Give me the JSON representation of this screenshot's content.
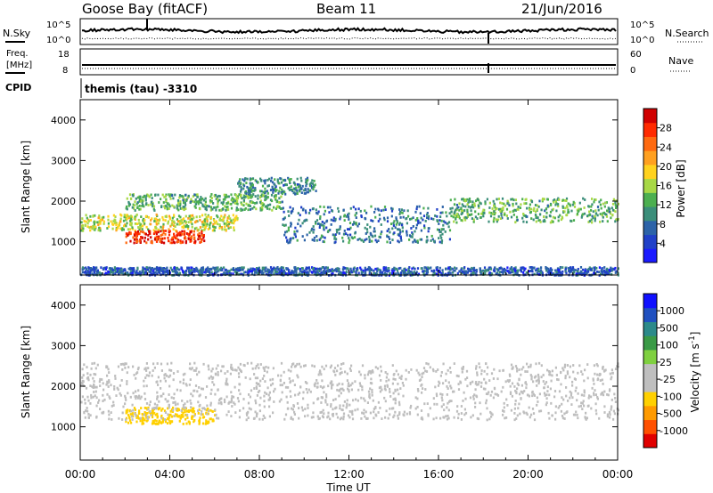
{
  "header": {
    "station": "Goose Bay (fitACF)",
    "beam": "Beam 11",
    "date": "21/Jun/2016",
    "program": "themis (tau)  -3310"
  },
  "noise_panel": {
    "left_label": "N.Sky",
    "right_label": "N.Search",
    "left_ticks": [
      "10^5",
      "10^0"
    ],
    "right_ticks": [
      "10^5",
      "10^0"
    ]
  },
  "freq_panel": {
    "left_label_1": "Freq.",
    "left_label_2": "[MHz]",
    "left_ticks": [
      "18",
      "8"
    ],
    "right_label": "Nave",
    "right_ticks": [
      "60",
      "0"
    ],
    "cpid_label": "CPID"
  },
  "time_axis": {
    "label": "Time UT",
    "ticks": [
      "00:00",
      "04:00",
      "08:00",
      "12:00",
      "16:00",
      "20:00",
      "00:00"
    ]
  },
  "range_axis": {
    "label": "Slant Range [km]",
    "ticks": [
      "1000",
      "2000",
      "3000",
      "4000"
    ]
  },
  "colors": {
    "power_scale": [
      "#1a1aff",
      "#2040c8",
      "#2c63a8",
      "#3b8e7a",
      "#4caf50",
      "#a8d846",
      "#ffd21e",
      "#ffa020",
      "#ff6a10",
      "#ff2a00",
      "#d00000"
    ],
    "velocity_scale": [
      "#e00000",
      "#ff5000",
      "#ff9a00",
      "#ffd000",
      "#bfbfbf",
      "#bfbfbf",
      "#7fd040",
      "#3a9a46",
      "#2c8a8a",
      "#2050c0",
      "#1010ff"
    ],
    "ground_scatter": "#bebebe"
  },
  "chart_data": [
    {
      "type": "heatmap",
      "name": "power",
      "x_range": [
        "00:00",
        "24:00"
      ],
      "y_range": [
        180,
        4500
      ],
      "colorbar": {
        "label": "Power [dB]",
        "ticks": [
          "4",
          "8",
          "12",
          "16",
          "20",
          "24",
          "28"
        ],
        "range": [
          0,
          30
        ]
      },
      "scatter_bands": [
        {
          "t0": 0.0,
          "t1": 7.0,
          "r0": 1300,
          "r1": 1700,
          "value": 16
        },
        {
          "t0": 2.0,
          "t1": 5.5,
          "r0": 1000,
          "r1": 1300,
          "value": 26
        },
        {
          "t0": 2.0,
          "t1": 9.0,
          "r0": 1800,
          "r1": 2200,
          "value": 12
        },
        {
          "t0": 7.0,
          "t1": 10.5,
          "r0": 2200,
          "r1": 2600,
          "value": 9
        },
        {
          "t0": 9.0,
          "t1": 16.5,
          "r0": 1000,
          "r1": 1900,
          "value": 8
        },
        {
          "t0": 16.5,
          "t1": 24.0,
          "r0": 1500,
          "r1": 2100,
          "value": 12
        },
        {
          "t0": 0.0,
          "t1": 24.0,
          "r0": 200,
          "r1": 400,
          "value": 6
        }
      ]
    },
    {
      "type": "heatmap",
      "name": "velocity",
      "x_range": [
        "00:00",
        "24:00"
      ],
      "y_range": [
        180,
        4500
      ],
      "colorbar": {
        "label": "Velocity [m s^-1]",
        "ticks": [
          "-1000",
          "-500",
          "-100",
          "-25",
          "25",
          "100",
          "500",
          "1000"
        ],
        "range": [
          -1200,
          1200
        ]
      },
      "scatter_bands": [
        {
          "t0": 2.0,
          "t1": 6.0,
          "r0": 1100,
          "r1": 1500,
          "value": -300
        },
        {
          "t0": 0.0,
          "t1": 24.0,
          "r0": 1200,
          "r1": 2600,
          "value": 0,
          "note": "ground scatter"
        }
      ]
    }
  ]
}
